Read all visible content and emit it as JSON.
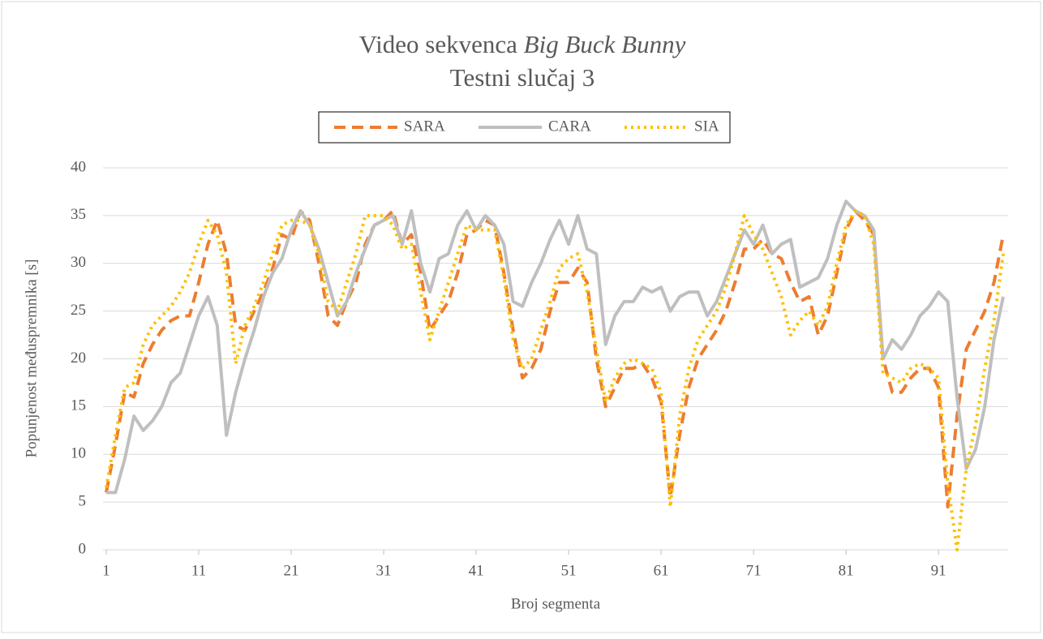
{
  "chart_data": {
    "type": "line",
    "title": "Video sekvenca",
    "title_italic": "Big Buck Bunny",
    "subtitle": "Testni slučaj 3",
    "xlabel": "Broj segmenta",
    "ylabel": "Popunjenost međuspremnika [s]",
    "x": [
      1,
      2,
      3,
      4,
      5,
      6,
      7,
      8,
      9,
      10,
      11,
      12,
      13,
      14,
      15,
      16,
      17,
      18,
      19,
      20,
      21,
      22,
      23,
      24,
      25,
      26,
      27,
      28,
      29,
      30,
      31,
      32,
      33,
      34,
      35,
      36,
      37,
      38,
      39,
      40,
      41,
      42,
      43,
      44,
      45,
      46,
      47,
      48,
      49,
      50,
      51,
      52,
      53,
      54,
      55,
      56,
      57,
      58,
      59,
      60,
      61,
      62,
      63,
      64,
      65,
      66,
      67,
      68,
      69,
      70,
      71,
      72,
      73,
      74,
      75,
      76,
      77,
      78,
      79,
      80,
      81,
      82,
      83,
      84,
      85,
      86,
      87,
      88,
      89,
      90,
      91,
      92,
      93,
      94,
      95,
      96,
      97,
      98
    ],
    "series": [
      {
        "name": "SARA",
        "color": "#ed7d31",
        "dash": "14 8",
        "width": 4,
        "values": [
          6,
          11,
          16.5,
          16,
          19.5,
          21.5,
          23,
          24,
          24.5,
          24.5,
          28,
          32,
          34.5,
          31,
          23.5,
          23,
          25,
          27,
          29.5,
          33,
          32.5,
          35.5,
          34.5,
          30,
          24.5,
          23.5,
          26,
          28,
          32,
          34,
          34.5,
          35.5,
          32,
          33,
          29,
          23,
          24.5,
          26,
          29,
          33,
          33.5,
          34.5,
          34,
          29,
          23,
          18,
          19,
          21,
          25,
          28,
          28,
          29.5,
          28,
          20,
          15,
          17,
          19,
          19,
          19.5,
          18,
          15.5,
          5.5,
          12,
          17,
          20,
          21.5,
          23,
          25,
          28,
          31.5,
          31.5,
          32.5,
          31,
          30.5,
          28,
          26,
          26.5,
          22.5,
          24.5,
          29,
          33.5,
          35.5,
          34.5,
          33,
          20,
          16.5,
          16.5,
          18,
          19,
          19,
          17,
          4.5,
          14,
          21,
          23,
          25,
          28,
          33
        ]
      },
      {
        "name": "CARA",
        "color": "#bfbfbf",
        "dash": "",
        "width": 4,
        "values": [
          6,
          6,
          9.5,
          14,
          12.5,
          13.5,
          15,
          17.5,
          18.5,
          21.5,
          24.5,
          26.5,
          23.5,
          12,
          16.5,
          20,
          23,
          26.5,
          29,
          30.5,
          33.5,
          35.5,
          34,
          31.5,
          28,
          24.5,
          26,
          29,
          31.5,
          34,
          34.5,
          35,
          32,
          35.5,
          30,
          27,
          30.5,
          31,
          34,
          35.5,
          33.5,
          35,
          34,
          32,
          26,
          25.5,
          28,
          30,
          32.5,
          34.5,
          32,
          35,
          31.5,
          31,
          21.5,
          24.5,
          26,
          26,
          27.5,
          27,
          27.5,
          25,
          26.5,
          27,
          27,
          24.5,
          26,
          28.5,
          31,
          33.5,
          32,
          34,
          31,
          32,
          32.5,
          27.5,
          28,
          28.5,
          30.5,
          34,
          36.5,
          35.5,
          35,
          33.5,
          20,
          22,
          21,
          22.5,
          24.5,
          25.5,
          27,
          26,
          16,
          8.5,
          10.5,
          15,
          22,
          26.5
        ]
      },
      {
        "name": "SIA",
        "color": "#ffc000",
        "dash": "3 5",
        "width": 4,
        "values": [
          6.5,
          12,
          17,
          17.5,
          21.5,
          23.5,
          24.5,
          25.5,
          27,
          29,
          32,
          34.5,
          33,
          29,
          19.5,
          23.5,
          25.5,
          28,
          31,
          34,
          34.5,
          34.5,
          34,
          31,
          26,
          25,
          28,
          31,
          35,
          35,
          35,
          34,
          31.5,
          32,
          27,
          22,
          25,
          28,
          31,
          34,
          33.5,
          33.5,
          33.5,
          28.5,
          22,
          19,
          20,
          23,
          26,
          29.5,
          30.5,
          31,
          27,
          21,
          15.5,
          18,
          19.5,
          20,
          19.5,
          19,
          16.5,
          4.5,
          14,
          19,
          22,
          23.5,
          25,
          27.5,
          31,
          35,
          33,
          31.5,
          29,
          26.5,
          22.5,
          24,
          25,
          23.5,
          25.5,
          30,
          34,
          35.5,
          35,
          32,
          18.5,
          18,
          17.5,
          19,
          19.5,
          19,
          18,
          7,
          0,
          8.5,
          13,
          19,
          24,
          31
        ]
      }
    ],
    "xlim": [
      1,
      98
    ],
    "xticks": [
      1,
      11,
      21,
      31,
      41,
      51,
      61,
      71,
      81,
      91
    ],
    "ylim": [
      0,
      40
    ],
    "yticks": [
      0,
      5,
      10,
      15,
      20,
      25,
      30,
      35,
      40
    ],
    "grid": true,
    "legend": "top"
  }
}
